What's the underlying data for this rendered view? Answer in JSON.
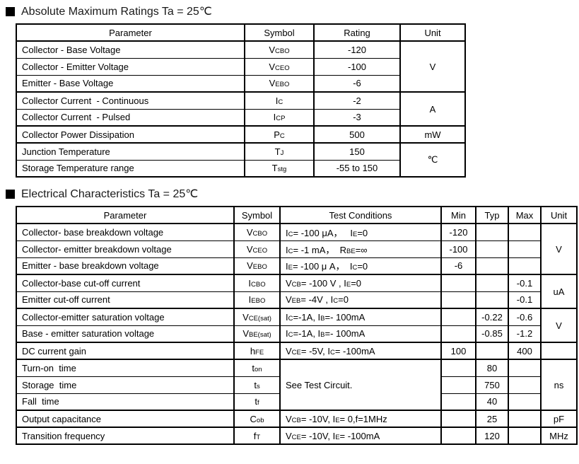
{
  "amr": {
    "title": "Absolute Maximum Ratings Ta = 25℃",
    "headers": [
      "Parameter",
      "Symbol",
      "Rating",
      "Unit"
    ],
    "rows": [
      {
        "p": "Collector - Base Voltage",
        "sym": [
          {
            "t": "V"
          },
          {
            "t": "CBO",
            "s": 1
          }
        ],
        "rating": "-120",
        "unit": "V"
      },
      {
        "p": "Collector - Emitter Voltage",
        "sym": [
          {
            "t": "V"
          },
          {
            "t": "CEO",
            "s": 1
          }
        ],
        "rating": "-100"
      },
      {
        "p": "Emitter - Base Voltage",
        "sym": [
          {
            "t": "V"
          },
          {
            "t": "EBO",
            "s": 1
          }
        ],
        "rating": "-6"
      },
      {
        "p": "Collector Current  - Continuous",
        "sym": [
          {
            "t": "I"
          },
          {
            "t": "C",
            "s": 1
          }
        ],
        "rating": "-2",
        "unit": "A"
      },
      {
        "p": "Collector Current  - Pulsed",
        "sym": [
          {
            "t": "I"
          },
          {
            "t": "CP",
            "s": 1
          }
        ],
        "rating": "-3"
      },
      {
        "p": "Collector Power Dissipation",
        "sym": [
          {
            "t": "P"
          },
          {
            "t": "C",
            "s": 1
          }
        ],
        "rating": "500",
        "unit": "mW"
      },
      {
        "p": "Junction Temperature",
        "sym": [
          {
            "t": "T"
          },
          {
            "t": "J",
            "s": 1
          }
        ],
        "rating": "150",
        "unit": "℃"
      },
      {
        "p": "Storage Temperature range",
        "sym": [
          {
            "t": "T"
          },
          {
            "t": "stg",
            "s": 1
          }
        ],
        "rating": "-55 to 150"
      }
    ]
  },
  "ec": {
    "title": "Electrical Characteristics Ta = 25℃",
    "headers": [
      "Parameter",
      "Symbol",
      "Test Conditions",
      "Min",
      "Typ",
      "Max",
      "Unit"
    ],
    "rows": [
      {
        "p": "Collector- base breakdown voltage",
        "sym": [
          {
            "t": "V"
          },
          {
            "t": "CBO",
            "s": 1
          }
        ],
        "cond": [
          {
            "t": "I"
          },
          {
            "t": "C",
            "s": 1
          },
          {
            "t": "= -100 μA，   "
          },
          {
            "t": "I"
          },
          {
            "t": "E",
            "s": 1
          },
          {
            "t": "=0"
          }
        ],
        "min": "-120",
        "typ": "",
        "max": "",
        "unit": "V"
      },
      {
        "p": "Collector- emitter breakdown voltage",
        "sym": [
          {
            "t": "V"
          },
          {
            "t": "CEO",
            "s": 1
          }
        ],
        "cond": [
          {
            "t": "I"
          },
          {
            "t": "C",
            "s": 1
          },
          {
            "t": "= -1 mA，  "
          },
          {
            "t": "R"
          },
          {
            "t": "BE",
            "s": 1
          },
          {
            "t": "=∞"
          }
        ],
        "min": "-100",
        "typ": "",
        "max": ""
      },
      {
        "p": "Emitter - base breakdown voltage",
        "sym": [
          {
            "t": "V"
          },
          {
            "t": "EBO",
            "s": 1
          }
        ],
        "cond": [
          {
            "t": "I"
          },
          {
            "t": "E",
            "s": 1
          },
          {
            "t": "= -100 μ A，  "
          },
          {
            "t": "I"
          },
          {
            "t": "C",
            "s": 1
          },
          {
            "t": "=0"
          }
        ],
        "min": "-6",
        "typ": "",
        "max": ""
      },
      {
        "p": "Collector-base cut-off current",
        "sym": [
          {
            "t": "I"
          },
          {
            "t": "CBO",
            "s": 1
          }
        ],
        "cond": [
          {
            "t": "V"
          },
          {
            "t": "CB",
            "s": 1
          },
          {
            "t": "= -100 V , "
          },
          {
            "t": "I"
          },
          {
            "t": "E",
            "s": 1
          },
          {
            "t": "=0"
          }
        ],
        "min": "",
        "typ": "",
        "max": "-0.1",
        "unit": "uA"
      },
      {
        "p": "Emitter cut-off current",
        "sym": [
          {
            "t": "I"
          },
          {
            "t": "EBO",
            "s": 1
          }
        ],
        "cond": [
          {
            "t": "V"
          },
          {
            "t": "EB",
            "s": 1
          },
          {
            "t": "= -4V , "
          },
          {
            "t": "I"
          },
          {
            "t": "C",
            "s": 1
          },
          {
            "t": "=0"
          }
        ],
        "min": "",
        "typ": "",
        "max": "-0.1"
      },
      {
        "p": "Collector-emitter saturation voltage",
        "sym": [
          {
            "t": "V"
          },
          {
            "t": "CE(sat)",
            "s": 1
          }
        ],
        "cond": [
          {
            "t": "I"
          },
          {
            "t": "C",
            "s": 1
          },
          {
            "t": "=-1A, "
          },
          {
            "t": "I"
          },
          {
            "t": "B",
            "s": 1
          },
          {
            "t": "=- 100mA"
          }
        ],
        "min": "",
        "typ": "-0.22",
        "max": "-0.6",
        "unit": "V"
      },
      {
        "p": "Base - emitter saturation voltage",
        "sym": [
          {
            "t": "V"
          },
          {
            "t": "BE(sat)",
            "s": 1
          }
        ],
        "cond": [
          {
            "t": "I"
          },
          {
            "t": "C",
            "s": 1
          },
          {
            "t": "=-1A, "
          },
          {
            "t": "I"
          },
          {
            "t": "B",
            "s": 1
          },
          {
            "t": "=- 100mA"
          }
        ],
        "min": "",
        "typ": "-0.85",
        "max": "-1.2"
      },
      {
        "p": "DC current gain",
        "sym": [
          {
            "t": "h"
          },
          {
            "t": "FE",
            "s": 1
          }
        ],
        "cond": [
          {
            "t": "V"
          },
          {
            "t": "CE",
            "s": 1
          },
          {
            "t": "= -5V, "
          },
          {
            "t": "I"
          },
          {
            "t": "C",
            "s": 1
          },
          {
            "t": "= -100mA"
          }
        ],
        "min": "100",
        "typ": "",
        "max": "400",
        "unit": ""
      },
      {
        "p": "Turn-on  time",
        "sym": [
          {
            "t": "t"
          },
          {
            "t": "on",
            "s": 1
          }
        ],
        "cond": [
          {
            "t": "See Test Circuit."
          }
        ],
        "min": "",
        "typ": "80",
        "max": "",
        "unit": "ns"
      },
      {
        "p": "Storage  time",
        "sym": [
          {
            "t": "t"
          },
          {
            "t": "s",
            "s": 1
          }
        ],
        "min": "",
        "typ": "750",
        "max": ""
      },
      {
        "p": "Fall  time",
        "sym": [
          {
            "t": "t"
          },
          {
            "t": "f",
            "s": 1
          }
        ],
        "min": "",
        "typ": "40",
        "max": ""
      },
      {
        "p": "Output capacitance",
        "sym": [
          {
            "t": "C"
          },
          {
            "t": "ob",
            "s": 1
          }
        ],
        "cond": [
          {
            "t": "V"
          },
          {
            "t": "CB",
            "s": 1
          },
          {
            "t": "= -10V, "
          },
          {
            "t": "I"
          },
          {
            "t": "E",
            "s": 1
          },
          {
            "t": "= 0,f=1MHz"
          }
        ],
        "min": "",
        "typ": "25",
        "max": "",
        "unit": "pF"
      },
      {
        "p": "Transition frequency",
        "sym": [
          {
            "t": "f"
          },
          {
            "t": "T",
            "s": 1
          }
        ],
        "cond": [
          {
            "t": "V"
          },
          {
            "t": "CE",
            "s": 1
          },
          {
            "t": "= -10V, "
          },
          {
            "t": "I"
          },
          {
            "t": "E",
            "s": 1
          },
          {
            "t": "= -100mA"
          }
        ],
        "min": "",
        "typ": "120",
        "max": "",
        "unit": "MHz"
      }
    ]
  }
}
